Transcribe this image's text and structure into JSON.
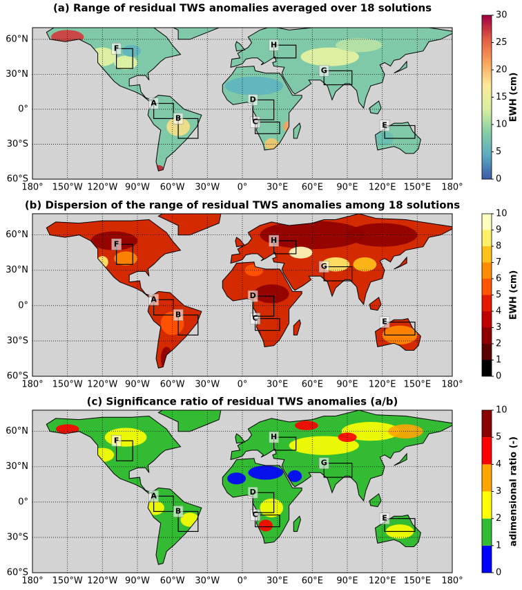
{
  "panels": [
    {
      "title": "(a) Range of residual TWS anomalies averaged over 18 solutions",
      "xlim": [
        -180,
        180
      ],
      "ylim": [
        -60,
        70
      ],
      "colorbar_label": "EWH (cm)",
      "colorbar_ticks": [
        0,
        5,
        10,
        15,
        20,
        25,
        30
      ],
      "colorbar_colors": [
        "#3d5aa8",
        "#5aa9c2",
        "#86cfa5",
        "#d8eea0",
        "#fde99a",
        "#f9a25c",
        "#e25a43",
        "#9e0142"
      ],
      "colorbar_style": "continuous",
      "colorbar_spacing": "proportional"
    },
    {
      "title": "(b) Dispersion of the range of residual TWS anomalies among 18 solutions",
      "xlim": [
        -180,
        180
      ],
      "ylim": [
        -60,
        78
      ],
      "colorbar_label": "EWH (cm)",
      "colorbar_ticks": [
        0,
        1,
        2,
        3,
        4,
        5,
        6,
        7,
        8,
        9,
        10
      ],
      "colorbar_colors": [
        "#000000",
        "#5a0000",
        "#8e0000",
        "#c00000",
        "#e41a00",
        "#ff5500",
        "#ff8c00",
        "#ffc21a",
        "#fff06a",
        "#ffffc0"
      ],
      "colorbar_style": "discrete",
      "colorbar_spacing": "proportional"
    },
    {
      "title": "(c) Significance ratio of residual TWS anomalies (a/b)",
      "xlim": [
        -180,
        180
      ],
      "ylim": [
        -60,
        78
      ],
      "colorbar_label": "adimensional ratio (-)",
      "colorbar_ticks": [
        0,
        1,
        2,
        3,
        4,
        5,
        10
      ],
      "colorbar_colors": [
        "#0000ff",
        "#33bb33",
        "#ffff00",
        "#ffa500",
        "#ff0000",
        "#8b0000"
      ],
      "colorbar_style": "discrete",
      "colorbar_spacing": "uniform"
    }
  ],
  "lon_ticks": [
    {
      "value": -180,
      "label": "180°"
    },
    {
      "value": -150,
      "label": "150°W"
    },
    {
      "value": -120,
      "label": "120°W"
    },
    {
      "value": -90,
      "label": "90°W"
    },
    {
      "value": -60,
      "label": "60°W"
    },
    {
      "value": -30,
      "label": "30°W"
    },
    {
      "value": 0,
      "label": "0°"
    },
    {
      "value": 30,
      "label": "30°E"
    },
    {
      "value": 60,
      "label": "60°E"
    },
    {
      "value": 90,
      "label": "90°E"
    },
    {
      "value": 120,
      "label": "120°E"
    },
    {
      "value": 150,
      "label": "150°E"
    },
    {
      "value": 180,
      "label": "180°"
    }
  ],
  "lat_ticks": [
    {
      "value": 60,
      "label": "60°N"
    },
    {
      "value": 30,
      "label": "30°N"
    },
    {
      "value": 0,
      "label": "0°"
    },
    {
      "value": -30,
      "label": "30°S"
    },
    {
      "value": -60,
      "label": "60°S"
    }
  ],
  "regions": [
    "A",
    "B",
    "C",
    "D",
    "E",
    "F",
    "G",
    "H"
  ]
}
